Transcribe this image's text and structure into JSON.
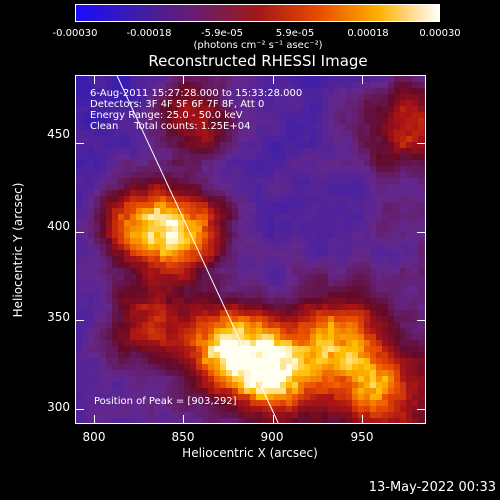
{
  "colorbar": {
    "ticks": [
      "-0.00030",
      "-0.00018",
      "-5.9e-05",
      "5.9e-05",
      "0.00018",
      "0.00030"
    ],
    "units": "(photons cm⁻² s⁻¹ asec⁻²)",
    "colors": [
      "#1c0aff",
      "#3b1ea8",
      "#6a1d6b",
      "#a01818",
      "#e84a00",
      "#ffb000",
      "#ffffff"
    ]
  },
  "chart_data": {
    "type": "heatmap",
    "title": "Reconstructed RHESSI Image",
    "xlabel": "Heliocentric X (arcsec)",
    "ylabel": "Heliocentric Y (arcsec)",
    "xlim": [
      790,
      985
    ],
    "ylim": [
      292,
      488
    ],
    "xticks": [
      800,
      850,
      900,
      950
    ],
    "yticks": [
      300,
      350,
      400,
      450
    ],
    "zlim": [
      -0.0003,
      0.0003
    ],
    "annotations": {
      "time_range": "6-Aug-2011 15:27:28.000 to 15:33:28.000",
      "detectors": "Detectors: 3F 4F 5F 6F 7F 8F, Att 0",
      "energy_range": "Energy Range: 25.0 - 50.0 keV",
      "clean_counts": "Clean     Total counts: 1.25E+04",
      "peak": "Position of Peak = [903,292]"
    },
    "bright_regions": [
      {
        "x": 900,
        "y": 320,
        "level": 1.0
      },
      {
        "x": 875,
        "y": 335,
        "level": 0.9
      },
      {
        "x": 935,
        "y": 340,
        "level": 0.8
      },
      {
        "x": 850,
        "y": 400,
        "level": 0.85
      },
      {
        "x": 825,
        "y": 405,
        "level": 0.75
      },
      {
        "x": 960,
        "y": 310,
        "level": 0.7
      },
      {
        "x": 855,
        "y": 465,
        "level": 0.6
      },
      {
        "x": 975,
        "y": 460,
        "level": 0.55
      },
      {
        "x": 830,
        "y": 350,
        "level": 0.55
      }
    ],
    "limb_line": [
      [
        813,
        488
      ],
      [
        903,
        292
      ]
    ]
  },
  "footer": "13-May-2022 00:33"
}
